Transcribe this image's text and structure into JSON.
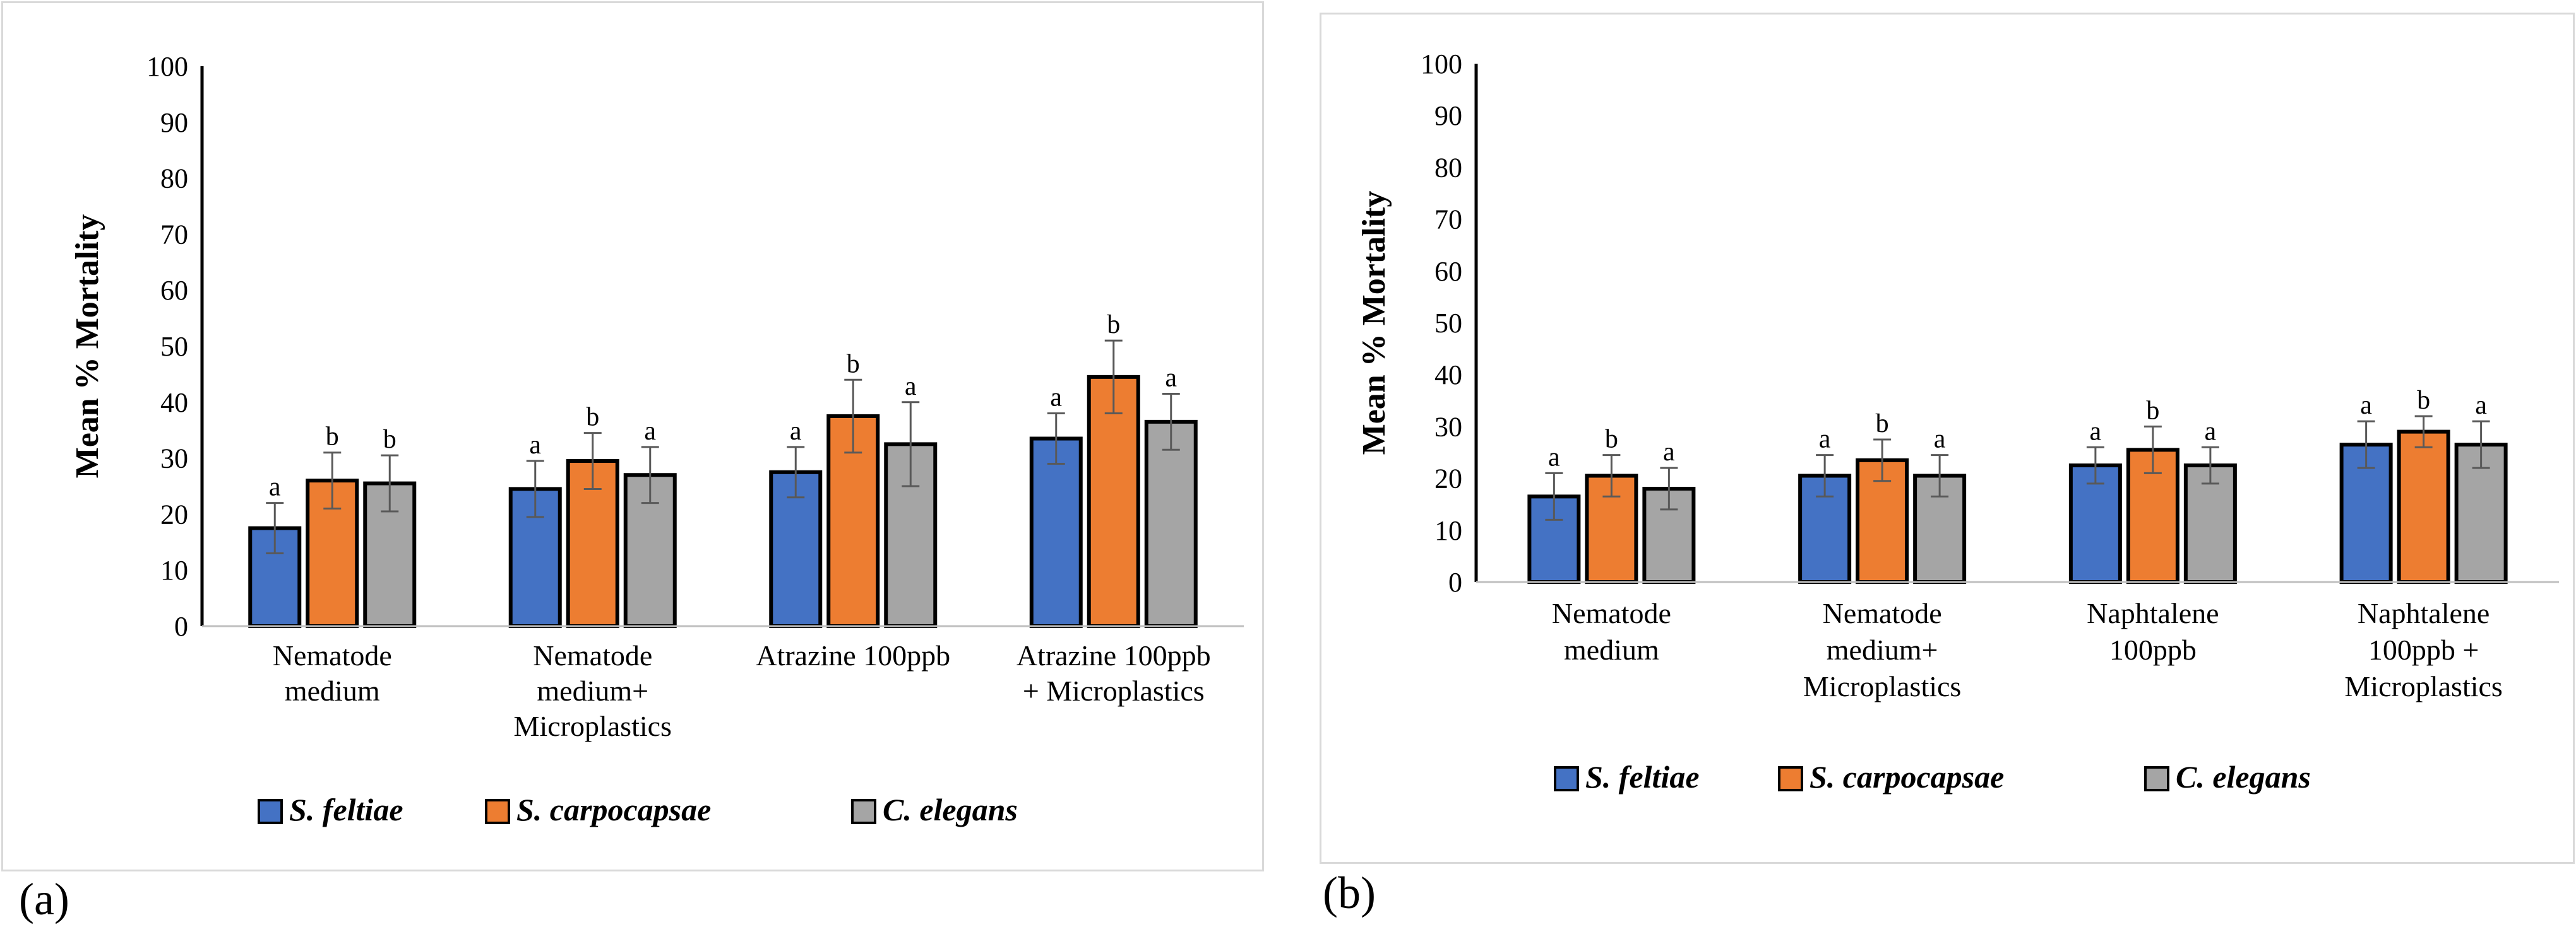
{
  "colors": {
    "s_feltiae": "#4472c4",
    "s_carpocapsae": "#ed7d31",
    "c_elegans": "#a5a5a5",
    "error_bar": "#595959",
    "axis": "#000000"
  },
  "panel_labels": [
    "(a)",
    "(b)"
  ],
  "chart_data": [
    {
      "type": "bar",
      "panel": "(a)",
      "title": "",
      "xlabel": "",
      "ylabel": "Mean % Mortality",
      "ylim": [
        0,
        100
      ],
      "yticks": [
        0,
        10,
        20,
        30,
        40,
        50,
        60,
        70,
        80,
        90,
        100
      ],
      "grid": false,
      "legend_position": "bottom",
      "categories": [
        [
          "Nematode",
          "medium"
        ],
        [
          "Nematode",
          "medium+",
          "Microplastics"
        ],
        [
          "Atrazine 100ppb"
        ],
        [
          "Atrazine 100ppb",
          "+ Microplastics"
        ]
      ],
      "series": [
        {
          "name": "S. feltiae",
          "color": "#4472c4",
          "values": [
            17.5,
            24.5,
            27.5,
            33.5
          ],
          "errors": [
            4.5,
            5,
            4.5,
            4.5
          ],
          "labels": [
            "a",
            "a",
            "a",
            "a"
          ]
        },
        {
          "name": "S. carpocapsae",
          "color": "#ed7d31",
          "values": [
            26,
            29.5,
            37.5,
            44.5
          ],
          "errors": [
            5,
            5,
            6.5,
            6.5
          ],
          "labels": [
            "b",
            "b",
            "b",
            "b"
          ]
        },
        {
          "name": "C. elegans",
          "color": "#a5a5a5",
          "values": [
            25.5,
            27,
            32.5,
            36.5
          ],
          "errors": [
            5,
            5,
            7.5,
            5
          ],
          "labels": [
            "b",
            "a",
            "a",
            "a"
          ]
        }
      ]
    },
    {
      "type": "bar",
      "panel": "(b)",
      "title": "",
      "xlabel": "",
      "ylabel": "Mean % Mortality",
      "ylim": [
        0,
        100
      ],
      "yticks": [
        0,
        10,
        20,
        30,
        40,
        50,
        60,
        70,
        80,
        90,
        100
      ],
      "grid": false,
      "legend_position": "bottom",
      "categories": [
        [
          "Nematode",
          "medium"
        ],
        [
          "Nematode",
          "medium+",
          "Microplastics"
        ],
        [
          "Naphtalene",
          "100ppb"
        ],
        [
          "Naphtalene",
          "100ppb +",
          "Microplastics"
        ]
      ],
      "series": [
        {
          "name": "S. feltiae",
          "color": "#4472c4",
          "values": [
            16.5,
            20.5,
            22.5,
            26.5
          ],
          "errors": [
            4.5,
            4,
            3.5,
            4.5
          ],
          "labels": [
            "a",
            "a",
            "a",
            "a"
          ]
        },
        {
          "name": "S. carpocapsae",
          "color": "#ed7d31",
          "values": [
            20.5,
            23.5,
            25.5,
            29
          ],
          "errors": [
            4,
            4,
            4.5,
            3
          ],
          "labels": [
            "b",
            "b",
            "b",
            "b"
          ]
        },
        {
          "name": "C. elegans",
          "color": "#a5a5a5",
          "values": [
            18,
            20.5,
            22.5,
            26.5
          ],
          "errors": [
            4,
            4,
            3.5,
            4.5
          ],
          "labels": [
            "a",
            "a",
            "a",
            "a"
          ]
        }
      ]
    }
  ]
}
